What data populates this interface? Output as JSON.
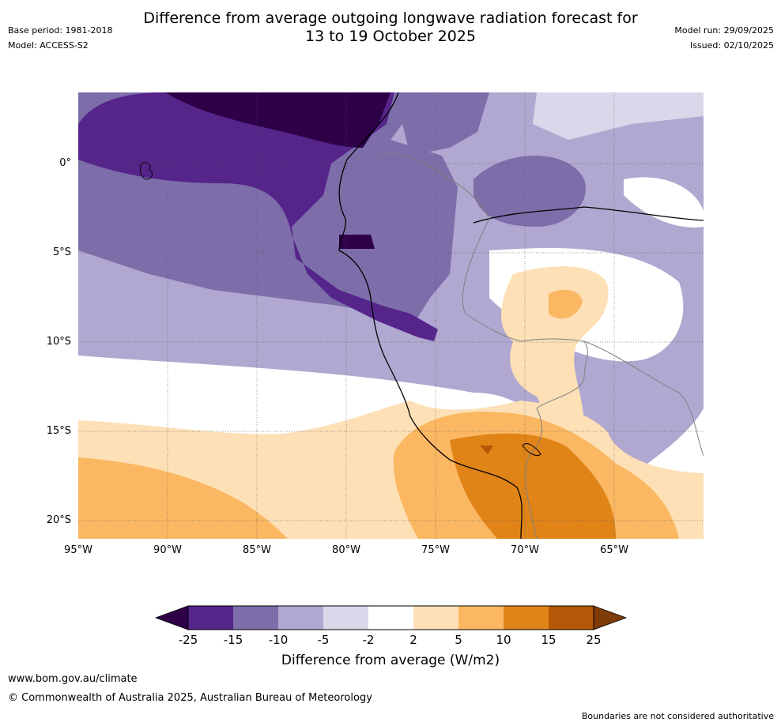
{
  "title_line1": "Difference from average outgoing longwave radiation forecast for",
  "title_line2": "13 to 19 October 2025",
  "base_period": "Base period: 1981-2018",
  "model": "Model: ACCESS-S2",
  "model_run": "Model run: 29/09/2025",
  "issued": "Issued: 02/10/2025",
  "lat_labels": [
    "0°",
    "5°S",
    "10°S",
    "15°S",
    "20°S"
  ],
  "lon_labels": [
    "95°W",
    "90°W",
    "85°W",
    "80°W",
    "75°W",
    "70°W",
    "65°W"
  ],
  "colorbar": {
    "ticks": [
      "-25",
      "-15",
      "-10",
      "-5",
      "-2",
      "2",
      "5",
      "10",
      "15",
      "25"
    ],
    "title": "Difference from average (W/m2)",
    "colors": [
      "#2d0048",
      "#55258a",
      "#7d6eaa",
      "#b0a8d0",
      "#d9d8ea",
      "#ffffff",
      "#fde0b6",
      "#fbb762",
      "#e08418",
      "#b35806",
      "#7f3b08"
    ]
  },
  "footer": {
    "website": "www.bom.gov.au/climate",
    "copyright": "© Commonwealth of Australia 2025, Australian Bureau of Meteorology",
    "disclaimer": "Boundaries are not considered authoritative"
  }
}
